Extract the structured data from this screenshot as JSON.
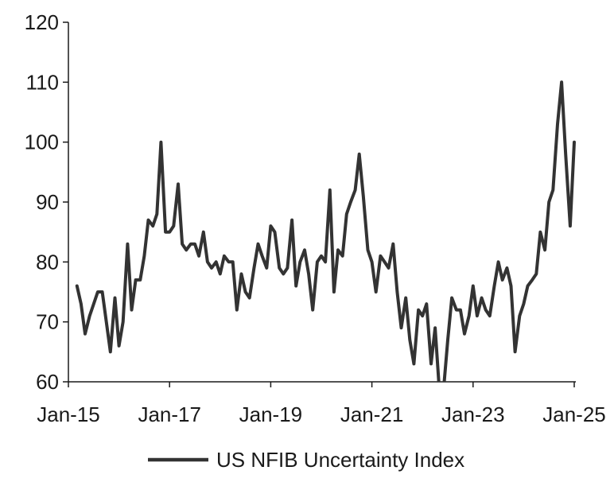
{
  "chart_data": {
    "type": "line",
    "title": "",
    "xlabel": "",
    "ylabel": "",
    "ylim": [
      60,
      120
    ],
    "yticks": [
      60,
      70,
      80,
      90,
      100,
      110,
      120
    ],
    "ytick_labels": [
      "60",
      "70",
      "80",
      "90",
      "100",
      "110",
      "120"
    ],
    "xtick_labels": [
      "Jan-15",
      "Jan-17",
      "Jan-19",
      "Jan-21",
      "Jan-23",
      "Jan-25"
    ],
    "x_start": "2015-01",
    "grid": false,
    "legend_position": "bottom-center",
    "series": [
      {
        "name": "US NFIB Uncertainty Index",
        "color": "#333333",
        "points": [
          [
            2015.17,
            76
          ],
          [
            2015.25,
            73
          ],
          [
            2015.33,
            68
          ],
          [
            2015.42,
            71
          ],
          [
            2015.5,
            73
          ],
          [
            2015.58,
            75
          ],
          [
            2015.67,
            75
          ],
          [
            2015.75,
            70
          ],
          [
            2015.83,
            65
          ],
          [
            2015.92,
            74
          ],
          [
            2016.0,
            66
          ],
          [
            2016.08,
            70
          ],
          [
            2016.17,
            83
          ],
          [
            2016.25,
            72
          ],
          [
            2016.33,
            77
          ],
          [
            2016.42,
            77
          ],
          [
            2016.5,
            81
          ],
          [
            2016.58,
            87
          ],
          [
            2016.67,
            86
          ],
          [
            2016.75,
            88
          ],
          [
            2016.83,
            100
          ],
          [
            2016.92,
            85
          ],
          [
            2017.0,
            85
          ],
          [
            2017.08,
            86
          ],
          [
            2017.17,
            93
          ],
          [
            2017.25,
            83
          ],
          [
            2017.33,
            82
          ],
          [
            2017.42,
            83
          ],
          [
            2017.5,
            83
          ],
          [
            2017.58,
            81
          ],
          [
            2017.67,
            85
          ],
          [
            2017.75,
            80
          ],
          [
            2017.83,
            79
          ],
          [
            2017.92,
            80
          ],
          [
            2018.0,
            78
          ],
          [
            2018.08,
            81
          ],
          [
            2018.17,
            80
          ],
          [
            2018.25,
            80
          ],
          [
            2018.33,
            72
          ],
          [
            2018.42,
            78
          ],
          [
            2018.5,
            75
          ],
          [
            2018.58,
            74
          ],
          [
            2018.67,
            79
          ],
          [
            2018.75,
            83
          ],
          [
            2018.83,
            81
          ],
          [
            2018.92,
            79
          ],
          [
            2019.0,
            86
          ],
          [
            2019.08,
            85
          ],
          [
            2019.17,
            79
          ],
          [
            2019.25,
            78
          ],
          [
            2019.33,
            79
          ],
          [
            2019.42,
            87
          ],
          [
            2019.5,
            76
          ],
          [
            2019.58,
            80
          ],
          [
            2019.67,
            82
          ],
          [
            2019.75,
            78
          ],
          [
            2019.83,
            72
          ],
          [
            2019.92,
            80
          ],
          [
            2020.0,
            81
          ],
          [
            2020.08,
            80
          ],
          [
            2020.17,
            92
          ],
          [
            2020.25,
            75
          ],
          [
            2020.33,
            82
          ],
          [
            2020.42,
            81
          ],
          [
            2020.5,
            88
          ],
          [
            2020.58,
            90
          ],
          [
            2020.67,
            92
          ],
          [
            2020.75,
            98
          ],
          [
            2020.83,
            91
          ],
          [
            2020.92,
            82
          ],
          [
            2021.0,
            80
          ],
          [
            2021.08,
            75
          ],
          [
            2021.17,
            81
          ],
          [
            2021.25,
            80
          ],
          [
            2021.33,
            79
          ],
          [
            2021.42,
            83
          ],
          [
            2021.5,
            75
          ],
          [
            2021.58,
            69
          ],
          [
            2021.67,
            74
          ],
          [
            2021.75,
            67
          ],
          [
            2021.83,
            63
          ],
          [
            2021.92,
            72
          ],
          [
            2022.0,
            71
          ],
          [
            2022.08,
            73
          ],
          [
            2022.17,
            63
          ],
          [
            2022.25,
            69
          ],
          [
            2022.33,
            59
          ],
          [
            2022.42,
            59
          ],
          [
            2022.5,
            67
          ],
          [
            2022.58,
            74
          ],
          [
            2022.67,
            72
          ],
          [
            2022.75,
            72
          ],
          [
            2022.83,
            68
          ],
          [
            2022.92,
            71
          ],
          [
            2023.0,
            76
          ],
          [
            2023.08,
            71
          ],
          [
            2023.17,
            74
          ],
          [
            2023.25,
            72
          ],
          [
            2023.33,
            71
          ],
          [
            2023.42,
            76
          ],
          [
            2023.5,
            80
          ],
          [
            2023.58,
            77
          ],
          [
            2023.67,
            79
          ],
          [
            2023.75,
            76
          ],
          [
            2023.83,
            65
          ],
          [
            2023.92,
            71
          ],
          [
            2024.0,
            73
          ],
          [
            2024.08,
            76
          ],
          [
            2024.17,
            77
          ],
          [
            2024.25,
            78
          ],
          [
            2024.33,
            85
          ],
          [
            2024.42,
            82
          ],
          [
            2024.5,
            90
          ],
          [
            2024.58,
            92
          ],
          [
            2024.67,
            103
          ],
          [
            2024.75,
            110
          ],
          [
            2024.83,
            98
          ],
          [
            2024.92,
            86
          ],
          [
            2025.0,
            100
          ]
        ]
      }
    ]
  }
}
